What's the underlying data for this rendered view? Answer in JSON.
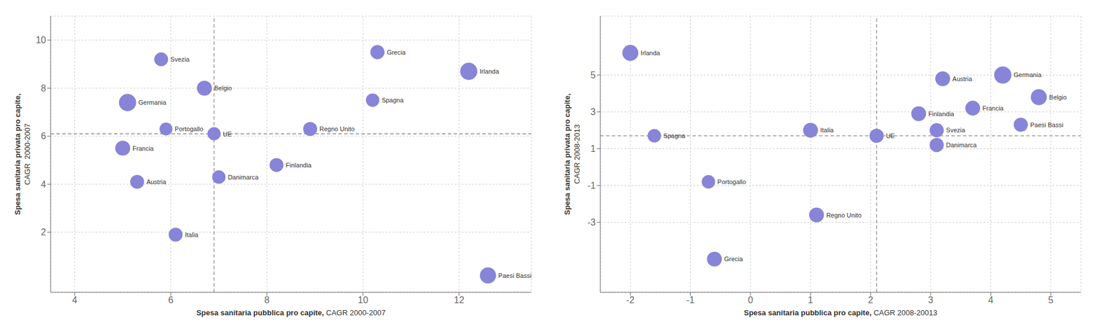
{
  "chart_data": [
    {
      "type": "scatter",
      "xlabel": [
        "Spesa sanitaria pubblica pro capite,",
        " CAGR 2000-2007"
      ],
      "ylabel": [
        "Spesa sanitaria privata pro capite,",
        "CAGR  2000-2007"
      ],
      "xlim": [
        3.5,
        13.5
      ],
      "ylim": [
        -0.5,
        11.0
      ],
      "xticks": [
        4,
        6,
        8,
        10,
        12
      ],
      "yticks": [
        2,
        4,
        6,
        8,
        10
      ],
      "grid": true,
      "color": "#8884d8",
      "avg_x": 6.9,
      "avg_y": 6.1,
      "labels": [
        "Svezia",
        "Belgio",
        "Germania",
        "Portogallo",
        "UE",
        "Grecia",
        "Irlanda",
        "Spagna",
        "Regno Unito",
        "Francia",
        "Danimarca",
        "Finlandia",
        "Austria",
        "Italia",
        "Paesi Bassi"
      ],
      "x": [
        5.8,
        6.7,
        5.1,
        5.9,
        6.9,
        10.3,
        12.2,
        10.2,
        8.9,
        5.0,
        7.0,
        8.2,
        5.3,
        6.1,
        12.6
      ],
      "y": [
        9.2,
        8.0,
        7.4,
        6.3,
        6.1,
        9.5,
        8.7,
        7.5,
        6.3,
        5.5,
        4.3,
        4.8,
        4.1,
        1.9,
        0.2
      ],
      "sizes": [
        550,
        650,
        850,
        480,
        500,
        580,
        850,
        520,
        560,
        650,
        520,
        560,
        560,
        560,
        750
      ]
    },
    {
      "type": "scatter",
      "xlabel": [
        "Spesa sanitaria pubblica pro capite,",
        " CAGR 2008-20013"
      ],
      "ylabel": [
        "Spesa sanitaria privata pro capite,",
        "CAGR 2008-2013"
      ],
      "xlim": [
        -2.5,
        5.5
      ],
      "ylim": [
        -6.8,
        8.2
      ],
      "xticks": [
        -2,
        -1,
        0,
        1,
        2,
        3,
        4,
        5
      ],
      "yticks": [
        -3,
        -1,
        1,
        3,
        5
      ],
      "grid": true,
      "color": "#8884d8",
      "avg_x": 2.1,
      "avg_y": 1.7,
      "labels": [
        "Irlanda",
        "Spagna",
        "Portogallo",
        "Grecia",
        "Italia",
        "UE",
        "Finlandia",
        "Svezia",
        "Danimarca",
        "Austria",
        "Francia",
        "Germania",
        "Paesi Bassi",
        "Belgio",
        "Regno Unito"
      ],
      "x": [
        -2.0,
        -1.6,
        -0.7,
        -0.6,
        1.0,
        2.1,
        2.8,
        3.1,
        3.1,
        3.2,
        3.7,
        4.2,
        4.5,
        4.8,
        1.1
      ],
      "y": [
        6.2,
        1.7,
        -0.8,
        -5.0,
        2.0,
        1.7,
        2.9,
        2.0,
        1.2,
        4.8,
        3.2,
        5.0,
        2.3,
        3.8,
        -2.6
      ],
      "sizes": [
        650,
        460,
        460,
        560,
        560,
        510,
        560,
        510,
        510,
        560,
        560,
        750,
        510,
        650,
        560
      ]
    }
  ]
}
